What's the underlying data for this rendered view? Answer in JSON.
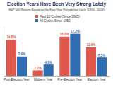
{
  "chart_data": {
    "type": "bar",
    "title": "Election Years Have Been Very Strong Lately",
    "subtitle": "S&P 500 Returns Based on the Four-Year Presidential Cycle (1950 - 2024)",
    "categories": [
      "Post-Election Year",
      "Midterm Year",
      "Pre-Election Year",
      "Election Year"
    ],
    "series": [
      {
        "name": "Past 10 Cycles (Since 1985)",
        "color": "#e0584c",
        "values": [
          14.8,
          2.2,
          16.0,
          11.6
        ],
        "value_labels": [
          "14.8%",
          "2.2%",
          "16.0%",
          "11.6%"
        ]
      },
      {
        "name": "All Cycles Since 1950",
        "color": "#2f6db3",
        "values": [
          7.9,
          4.6,
          17.2,
          7.5
        ],
        "value_labels": [
          "7.9%",
          "4.6%",
          "17.2%",
          "7.5%"
        ]
      }
    ],
    "ylim": [
      0,
      20
    ],
    "data_labels": true,
    "tick_labels": "x",
    "legend": "top"
  }
}
